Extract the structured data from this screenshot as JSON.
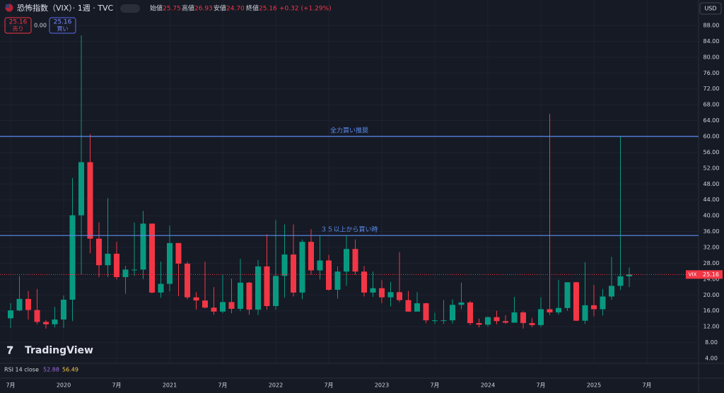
{
  "header": {
    "symbol": "恐怖指数（VIX）· 1週 · TVC",
    "open_label": "始値",
    "open": "25.75",
    "high_label": "高値",
    "high": "26.93",
    "low_label": "安値",
    "low": "24.70",
    "close_label": "終値",
    "close": "25.16",
    "change": "+0.32 (+1.29%)",
    "sell_price": "25.16",
    "sell": "売り",
    "spread": "0.00",
    "buy_price": "25.16",
    "buy": "買い",
    "currency": "USD",
    "logo": "TradingView",
    "rsi_label": "RSI 14 close",
    "rsi_1": "52.88",
    "rsi_2": "56.49"
  },
  "chart_data": {
    "type": "candlestick",
    "up_color": "#089981",
    "down_color": "#f23645",
    "grid": true,
    "x": [
      "2019-07",
      "2019-08",
      "2019-09",
      "2019-10",
      "2019-11",
      "2019-12",
      "2020-01",
      "2020-02",
      "2020-03",
      "2020-04",
      "2020-05",
      "2020-06",
      "2020-07",
      "2020-08",
      "2020-09",
      "2020-10",
      "2020-11",
      "2020-12",
      "2021-01",
      "2021-02",
      "2021-03",
      "2021-04",
      "2021-05",
      "2021-06",
      "2021-07",
      "2021-08",
      "2021-09",
      "2021-10",
      "2021-11",
      "2021-12",
      "2022-01",
      "2022-02",
      "2022-03",
      "2022-04",
      "2022-05",
      "2022-06",
      "2022-07",
      "2022-08",
      "2022-09",
      "2022-10",
      "2022-11",
      "2022-12",
      "2023-01",
      "2023-02",
      "2023-03",
      "2023-04",
      "2023-05",
      "2023-06",
      "2023-07",
      "2023-08",
      "2023-09",
      "2023-10",
      "2023-11",
      "2023-12",
      "2024-01",
      "2024-02",
      "2024-03",
      "2024-04",
      "2024-05",
      "2024-06",
      "2024-07",
      "2024-08",
      "2024-09",
      "2024-10",
      "2024-11",
      "2024-12",
      "2025-01",
      "2025-02",
      "2025-03",
      "2025-04",
      "2025-05"
    ],
    "open": [
      14.1,
      16.1,
      19,
      16.2,
      13.2,
      12.6,
      13.8,
      18.8,
      40.1,
      53.5,
      34.2,
      27.5,
      30.4,
      24.5,
      26.4,
      26.4,
      38,
      20.6,
      22.8,
      33.1,
      27.9,
      19.4,
      18.6,
      16.8,
      15.8,
      18.2,
      16.5,
      23.1,
      16.3,
      27.2,
      17.2,
      24.8,
      30.2,
      20.6,
      33.4,
      26.2,
      28.7,
      21.3,
      25.9,
      31.6,
      25.9,
      20.6,
      21.7,
      19.4,
      20.7,
      18.7,
      15.8,
      17.9,
      13.6,
      13.6,
      13.6,
      17.5,
      18.1,
      12.9,
      12.5,
      14.4,
      13.4,
      13,
      15.6,
      12.9,
      12.4,
      16.4,
      15.6,
      16.7,
      23.2,
      13.5,
      17.4,
      16.4,
      19.6,
      22.3,
      24.7
    ],
    "high": [
      17.9,
      24.8,
      21,
      21.5,
      13.7,
      17,
      19.9,
      49.5,
      85.5,
      60.6,
      38.3,
      44.4,
      33.4,
      27.3,
      38.3,
      41.2,
      38,
      28.4,
      37.5,
      33.1,
      28.4,
      20.7,
      28.4,
      22,
      25.1,
      24.1,
      29.1,
      23.3,
      28.8,
      35.3,
      38.9,
      37.8,
      37.8,
      34,
      36.6,
      35.1,
      30.1,
      27.2,
      34.9,
      34,
      27.3,
      25.9,
      23.7,
      23.3,
      30.8,
      21,
      20.7,
      18,
      15.5,
      18.7,
      18.9,
      23.1,
      18.5,
      14,
      14.6,
      16,
      14.9,
      19.5,
      15.9,
      14.2,
      19.4,
      65.7,
      23.8,
      23.1,
      23.3,
      28.3,
      22.5,
      21.5,
      29.6,
      60.1,
      26.93
    ],
    "low": [
      11.7,
      15.9,
      13.8,
      12.6,
      11.5,
      11.8,
      11.7,
      13.4,
      25.2,
      30.5,
      24.5,
      24.5,
      23.9,
      20.3,
      24.8,
      24,
      20.4,
      19.3,
      20.9,
      19.7,
      18.9,
      16.3,
      16.6,
      15,
      15.4,
      15.4,
      15.9,
      15,
      14.9,
      16.3,
      16.3,
      19.3,
      19.6,
      18.9,
      25.1,
      23.9,
      21.1,
      19.1,
      22.3,
      25.1,
      19.6,
      19.5,
      17.9,
      17.1,
      18.2,
      15.7,
      15.9,
      12.9,
      12.7,
      12.7,
      12.8,
      16.4,
      12.4,
      11.8,
      12,
      12.6,
      12.7,
      13,
      11.5,
      11.9,
      11.9,
      14.9,
      15,
      16,
      13.4,
      12.7,
      14.6,
      14.8,
      18.8,
      21.3,
      22
    ],
    "close": [
      16.1,
      19,
      16.2,
      13.2,
      12.6,
      13.8,
      18.8,
      40.1,
      53.5,
      34.2,
      27.5,
      30.4,
      24.5,
      26.4,
      26.4,
      38,
      20.6,
      22.8,
      33.1,
      27.9,
      19.4,
      18.6,
      16.8,
      15.8,
      18.2,
      16.5,
      23.1,
      16.3,
      27.2,
      17.2,
      24.8,
      30.2,
      20.6,
      33.4,
      26.2,
      28.7,
      21.3,
      25.9,
      31.6,
      25.9,
      20.6,
      21.7,
      19.4,
      20.7,
      18.7,
      15.8,
      17.9,
      13.6,
      13.6,
      13.6,
      17.5,
      18.1,
      12.9,
      12.5,
      14.4,
      13.4,
      13,
      15.6,
      12.9,
      12.4,
      16.4,
      15.6,
      16.7,
      23.2,
      13.5,
      17.4,
      16.4,
      19.6,
      22.3,
      24.7,
      25.16
    ],
    "xlim": [
      "2019-06",
      "2025-12"
    ],
    "xticks": [
      {
        "value": "2019-07",
        "label": "7月"
      },
      {
        "value": "2020-01",
        "label": "2020"
      },
      {
        "value": "2020-07",
        "label": "7月"
      },
      {
        "value": "2021-01",
        "label": "2021"
      },
      {
        "value": "2021-07",
        "label": "7月"
      },
      {
        "value": "2022-01",
        "label": "2022"
      },
      {
        "value": "2022-07",
        "label": "7月"
      },
      {
        "value": "2023-01",
        "label": "2023"
      },
      {
        "value": "2023-07",
        "label": "7月"
      },
      {
        "value": "2024-01",
        "label": "2024"
      },
      {
        "value": "2024-07",
        "label": "7月"
      },
      {
        "value": "2025-01",
        "label": "2025"
      },
      {
        "value": "2025-07",
        "label": "7月"
      }
    ],
    "ylim": [
      2,
      90
    ],
    "yticks": [
      {
        "value": 4,
        "label": "4.00"
      },
      {
        "value": 8,
        "label": "8.00"
      },
      {
        "value": 12,
        "label": "12.00"
      },
      {
        "value": 16,
        "label": "16.00"
      },
      {
        "value": 20,
        "label": "20.00"
      },
      {
        "value": 24,
        "label": "24.00"
      },
      {
        "value": 28,
        "label": "28.00"
      },
      {
        "value": 32,
        "label": "32.00"
      },
      {
        "value": 36,
        "label": "36.00"
      },
      {
        "value": 40,
        "label": "40.00"
      },
      {
        "value": 44,
        "label": "44.00"
      },
      {
        "value": 48,
        "label": "48.00"
      },
      {
        "value": 52,
        "label": "52.00"
      },
      {
        "value": 56,
        "label": "56.00"
      },
      {
        "value": 60,
        "label": "60.00"
      },
      {
        "value": 64,
        "label": "64.00"
      },
      {
        "value": 68,
        "label": "68.00"
      },
      {
        "value": 72,
        "label": "72.00"
      },
      {
        "value": 76,
        "label": "76.00"
      },
      {
        "value": 80,
        "label": "80.00"
      },
      {
        "value": 84,
        "label": "84.00"
      },
      {
        "value": 88,
        "label": "88.00"
      }
    ],
    "hlines": [
      {
        "value": 60,
        "label": "全力買い推奨",
        "color": "#5b8def"
      },
      {
        "value": 35,
        "label": "３５以上から買い時",
        "color": "#5b8def"
      }
    ],
    "last_price": {
      "symbol": "VIX",
      "value": 25.16,
      "color": "#f23645"
    }
  }
}
